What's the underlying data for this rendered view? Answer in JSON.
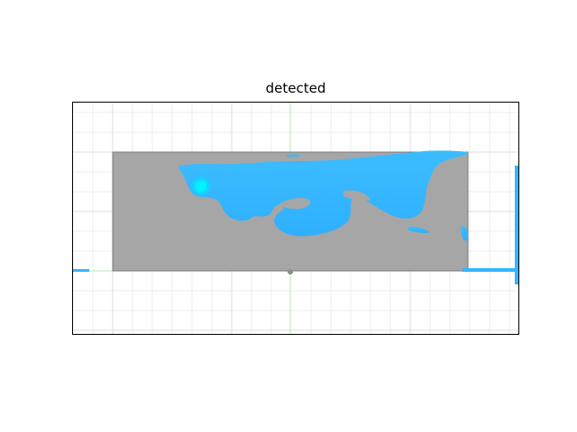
{
  "figure": {
    "title": "detected"
  },
  "colors": {
    "background": "#ffffff",
    "grid": "#ebebeb",
    "axis_line": "#b7e4b7",
    "image_plane": "#a6a6a6",
    "detection": "#33b5ff",
    "highlight": "#00e5ff",
    "frame": "#000000"
  },
  "view": {
    "type": "3d-viewport",
    "grid": true,
    "show_axes_ticks": false
  }
}
